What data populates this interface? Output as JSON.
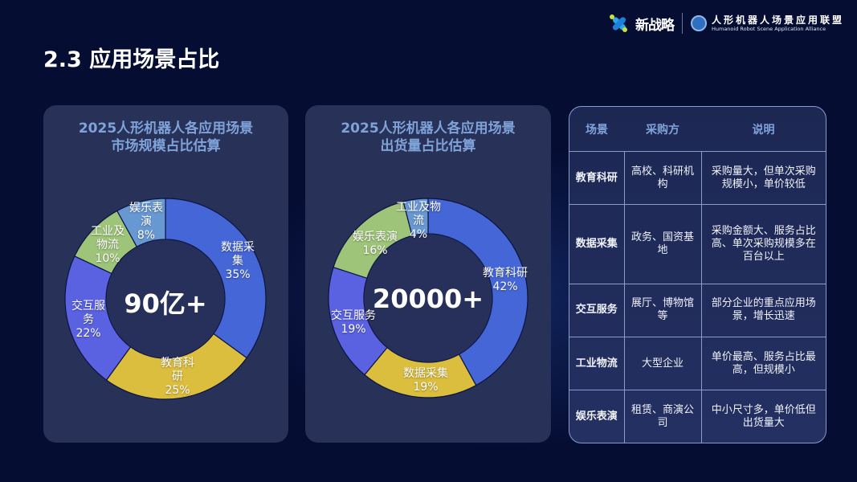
{
  "header": {
    "brand_name": "新战略",
    "alliance_name_cn": "人形机器人场景应用联盟",
    "alliance_name_en": "Humanoid Robot Scene Application Alliance"
  },
  "page": {
    "title": "2.3 应用场景占比"
  },
  "colors": {
    "background": "#050d33",
    "panel": "#283158",
    "title_blue": "#7fa3d8",
    "blue": "#4566d6",
    "yellow": "#dcbe3e",
    "purple_blue": "#5a62e2",
    "green": "#9ec47a",
    "light_blue": "#6898d2"
  },
  "chart_data": [
    {
      "type": "pie",
      "title": "2025人形机器人各应用场景市场规模占比估算",
      "title_lines": [
        "2025人形机器人各应用场景",
        "市场规模占比估算"
      ],
      "center_text": "90亿+",
      "categories": [
        "数据采集",
        "教育科研",
        "交互服务",
        "工业及物流",
        "娱乐表演"
      ],
      "values": [
        35,
        25,
        22,
        10,
        8
      ],
      "unit": "%",
      "donut": true,
      "label_lines": [
        [
          "数据采",
          "集",
          "35%"
        ],
        [
          "教育科",
          "研",
          "25%"
        ],
        [
          "交互服",
          "务",
          "22%"
        ],
        [
          "工业及",
          "物流",
          "10%"
        ],
        [
          "娱乐表",
          "演",
          "8%"
        ]
      ]
    },
    {
      "type": "pie",
      "title": "2025人形机器人各应用场景出货量占比估算",
      "title_lines": [
        "2025人形机器人各应用场景",
        "出货量占比估算"
      ],
      "center_text": "20000+",
      "categories": [
        "教育科研",
        "数据采集",
        "交互服务",
        "娱乐表演",
        "工业及物流"
      ],
      "values": [
        42,
        19,
        19,
        16,
        4
      ],
      "unit": "%",
      "donut": true,
      "label_lines": [
        [
          "教育科研",
          "42%"
        ],
        [
          "数据采集",
          "19%"
        ],
        [
          "交互服务",
          "19%"
        ],
        [
          "娱乐表演",
          "16%"
        ],
        [
          "工业及物",
          "流",
          "4%"
        ]
      ]
    }
  ],
  "table": {
    "headers": [
      "场景",
      "采购方",
      "说明"
    ],
    "rows": [
      {
        "scene": "教育科研",
        "buyer": "高校、科研机构",
        "note": "采购量大，但单次采购规模小，单价较低"
      },
      {
        "scene": "数据采集",
        "buyer": "政务、国资基地",
        "note": "采购金额大、服务占比高、单次采购规模多在百台以上"
      },
      {
        "scene": "交互服务",
        "buyer": "展厅、博物馆等",
        "note": "部分企业的重点应用场景，增长迅速"
      },
      {
        "scene": "工业物流",
        "buyer": "大型企业",
        "note": "单价最高、服务占比最高，但规模小"
      },
      {
        "scene": "娱乐表演",
        "buyer": "租赁、商演公司",
        "note": "中小尺寸多，单价低但出货量大"
      }
    ]
  }
}
